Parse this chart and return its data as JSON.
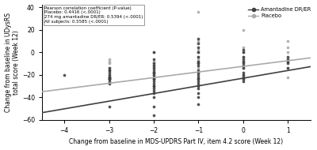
{
  "title": "",
  "xlabel": "Change from baseline in MDS-UPDRS Part IV, item 4.2 score (Week 12)",
  "ylabel": "Change from baseline in UDysRS\ntotal score (Week 12)",
  "xlim": [
    -4.5,
    1.5
  ],
  "ylim": [
    -60,
    42
  ],
  "xticks": [
    -4,
    -3,
    -2,
    -1,
    0,
    1
  ],
  "yticks": [
    -60,
    -40,
    -20,
    0,
    20,
    40
  ],
  "annotation_lines": [
    "Pearson correlation coefficient (P-value)",
    "Placebo: 0.4416 (<.0001)",
    "274 mg amantadine DR/ER: 0.5394 (<.0001)",
    "All subjects: 0.5585 (<.0001)"
  ],
  "amantadine_color": "#404040",
  "placebo_color": "#aaaaaa",
  "trend_amantadine_slope": 6.8,
  "trend_amantadine_intercept": -23.0,
  "trend_placebo_slope": 5.0,
  "trend_placebo_intercept": -12.5,
  "amantadine_scatter_x": [
    -4,
    -3,
    -3,
    -3,
    -3,
    -3,
    -3,
    -3,
    -3,
    -3,
    -3,
    -3,
    -3,
    -3,
    -3,
    -2,
    -2,
    -2,
    -2,
    -2,
    -2,
    -2,
    -2,
    -2,
    -2,
    -2,
    -2,
    -2,
    -2,
    -2,
    -2,
    -2,
    -2,
    -2,
    -2,
    -2,
    -2,
    -1,
    -1,
    -1,
    -1,
    -1,
    -1,
    -1,
    -1,
    -1,
    -1,
    -1,
    -1,
    -1,
    -1,
    -1,
    -1,
    -1,
    -1,
    -1,
    -1,
    0,
    0,
    0,
    0,
    0,
    0,
    0,
    0,
    0,
    0,
    0,
    0,
    0,
    1,
    1,
    1,
    1,
    1
  ],
  "amantadine_scatter_y": [
    -20,
    -28,
    -26,
    -24,
    -24,
    -24,
    -22,
    -22,
    -22,
    -20,
    -18,
    -16,
    -16,
    -14,
    -48,
    -56,
    -48,
    -40,
    -36,
    -34,
    -32,
    -30,
    -26,
    -24,
    -22,
    -20,
    -18,
    -18,
    -16,
    -14,
    -12,
    -10,
    -6,
    0,
    -28,
    -30,
    -24,
    12,
    8,
    4,
    0,
    -4,
    -8,
    -10,
    -12,
    -16,
    -18,
    -20,
    -22,
    -24,
    -26,
    -28,
    -30,
    -32,
    -36,
    -40,
    -46,
    -8,
    -4,
    0,
    2,
    -6,
    -10,
    -12,
    -14,
    -18,
    -20,
    -22,
    -24,
    -26,
    -4,
    -6,
    -8,
    -10,
    -14
  ],
  "placebo_scatter_x": [
    -3,
    -3,
    -3,
    -3,
    -3,
    -2,
    -2,
    -2,
    -2,
    -2,
    -2,
    -2,
    -1,
    -1,
    -1,
    -1,
    -1,
    -1,
    -1,
    -1,
    -1,
    -1,
    -1,
    0,
    0,
    0,
    0,
    0,
    0,
    0,
    0,
    1,
    1,
    1,
    1,
    1,
    1
  ],
  "placebo_scatter_y": [
    -6,
    -8,
    -10,
    -14,
    -20,
    -8,
    -10,
    -12,
    -14,
    -18,
    -20,
    0,
    36,
    10,
    2,
    0,
    -4,
    -6,
    -8,
    -10,
    -14,
    -18,
    -24,
    20,
    4,
    0,
    -4,
    -8,
    -14,
    -20,
    -24,
    10,
    4,
    0,
    -8,
    -14,
    -22
  ],
  "legend_labels": [
    "Amantadine DR/ER",
    "Placebo"
  ]
}
